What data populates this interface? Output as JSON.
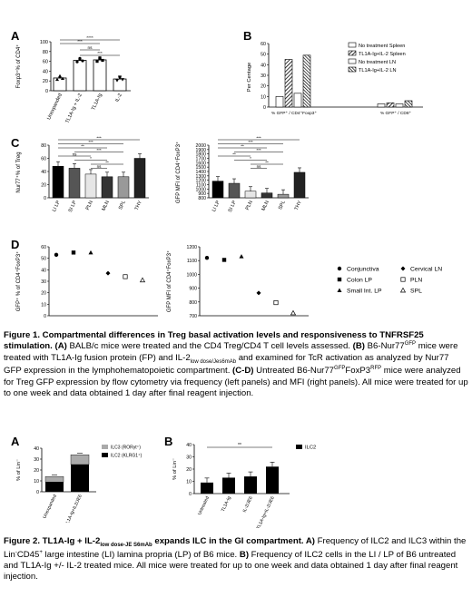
{
  "panel_letters": {
    "A": "A",
    "B": "B",
    "C": "C",
    "D": "D",
    "A2": "A",
    "B2": "B"
  },
  "fig1": {
    "A": {
      "ylabel": "Foxp3⁺% of CD4⁺",
      "yticks": [
        "0",
        "20",
        "40",
        "60",
        "80",
        "100"
      ],
      "categories": [
        "Unexpanded",
        "TL1A-Ig + IL-2",
        "TL1A-Ig",
        "IL-2"
      ],
      "values": [
        26,
        62,
        63,
        24
      ],
      "sig": [
        {
          "label": "***",
          "from": 0,
          "to": 2
        },
        {
          "label": "****",
          "from": 0,
          "to": 3
        },
        {
          "label": "ns",
          "from": 1,
          "to": 2
        },
        {
          "label": "***",
          "from": 1,
          "to": 3
        }
      ]
    },
    "B": {
      "ylabel": "Per Centage",
      "yticks": [
        "0",
        "10",
        "20",
        "30",
        "40",
        "50",
        "60"
      ],
      "xticks": [
        "% GFP⁺ / CD4⁺Foxp3⁺",
        "% GFP⁺ / CD8⁺"
      ],
      "legend": [
        "No treatment Spleen",
        "TL1A-Ig+IL-2 Spleen",
        "No treatment LN",
        "TL1A-Ig+IL-2 LN"
      ],
      "values": [
        [
          10,
          45,
          13,
          49
        ],
        [
          3,
          4,
          3,
          6
        ]
      ]
    },
    "C_left": {
      "ylabel": "Nur77⁺% of Treg",
      "yticks": [
        "0",
        "20",
        "40",
        "60",
        "80"
      ],
      "categories": [
        "LI LP",
        "SI LP",
        "PLN",
        "MLN",
        "SPL",
        "THY"
      ],
      "values": [
        48,
        45,
        36,
        32,
        32,
        60
      ],
      "sig": [
        "***",
        "***",
        "**",
        "***",
        "ns",
        "*",
        "**",
        "ns"
      ]
    },
    "C_right": {
      "ylabel": "GFP MFI of CD4⁺FoxP3⁺",
      "yticks": [
        "800",
        "900",
        "1000",
        "1100",
        "1200",
        "1300",
        "1400",
        "1500",
        "1600",
        "1700",
        "1800",
        "1900",
        "2000"
      ],
      "categories": [
        "LI LP",
        "SI LP",
        "PLN",
        "MLN",
        "SPL",
        "THY"
      ],
      "values": [
        1180,
        1130,
        950,
        910,
        880,
        1380
      ],
      "sig": [
        "***",
        "***",
        "**",
        "***",
        "**",
        "*",
        "**",
        "ns"
      ]
    },
    "D_left": {
      "ylabel": "GFP⁺ % of CD4⁺FoxP3⁺",
      "yticks": [
        "0",
        "10",
        "20",
        "30",
        "40",
        "50",
        "60"
      ],
      "values": [
        53,
        55,
        55,
        37,
        34,
        31
      ]
    },
    "D_right": {
      "ylabel": "GFP MFI of CD4⁺FoxP3⁺",
      "yticks": [
        "700",
        "800",
        "900",
        "1000",
        "1100",
        "1200"
      ],
      "values": [
        1120,
        1105,
        1130,
        865,
        795,
        720
      ]
    },
    "D_legend": [
      "Conjunctiva",
      "Colon LP",
      "Small Int. LP",
      "Cervical LN",
      "PLN",
      "SPL"
    ]
  },
  "caption1": {
    "lead": "Figure 1. Compartmental differences in Treg basal activation levels and responsiveness to TNFRSF25 stimulation.",
    "a": "(A)",
    "a_text": " BALB/c mice were treated and the CD4 Treg/CD4 T cell levels assessed. ",
    "b": "(B)",
    "b_text1": " B6-Nur77",
    "gfp": "GFP",
    "b_text2": " mice were treated with TL1A-Ig fusion protein (FP) and IL-2",
    "sub1": "low dose/Jes6mAb",
    "b_text3": " and examined for TcR activation as analyzed by Nur77 GFP expression in the lymphohematopoietic compartment. ",
    "cd": "(C-D)",
    "cd_text1": " Untreated B6-Nur77",
    "cd_gfp": "GFP",
    "cd_text2": "FoxP3",
    "rfp": "RFP",
    "cd_text3": " mice were analyzed for Treg GFP expression by flow cytometry via frequency (left panels) and MFI (right panels). All mice were treated for up to one week and data obtained 1 day after final reagent injection."
  },
  "fig2": {
    "A": {
      "ylabel": "% of Lin⁻",
      "yticks": [
        "0",
        "10",
        "20",
        "30",
        "40"
      ],
      "categories": [
        "Unexpanded",
        "TL1A-Ig+IL2/JE6"
      ],
      "legend": [
        "ILC3 (RORγt⁺)",
        "ILC2 (KLRG1⁺)"
      ],
      "ilc2": [
        9,
        25
      ],
      "ilc3": [
        5,
        9
      ]
    },
    "B": {
      "ylabel": "% of Lin⁻",
      "yticks": [
        "0",
        "10",
        "20",
        "30",
        "40"
      ],
      "categories": [
        "Untreated",
        "TL1A-Ig",
        "IL-2/JE6",
        "TL1A-Ig+IL-2/JE6"
      ],
      "values": [
        9,
        13,
        14,
        22
      ],
      "legend": "ILC2",
      "sig": "**"
    }
  },
  "caption2": {
    "lead1": "Figure 2. TL1A-Ig + IL-2",
    "lead_sub": "low dose-JE S6mAb",
    "lead2": " expands ILC in the GI compartment.",
    "a": " A)",
    "a_text1": " Frequency of ILC2 and ILC3 within the Lin",
    "a_sup1": "-",
    "a_text2": "CD45",
    "a_sup2": "+",
    "a_text3": " large intestine (LI) lamina propria (LP) of B6 mice. ",
    "b": "B)",
    "b_text": " Frequency of ILC2 cells in the LI / LP of B6 untreated and TL1A-Ig +/- IL-2 treated mice. All mice were treated for up to one week and data obtained 1 day after final reagent injection."
  }
}
